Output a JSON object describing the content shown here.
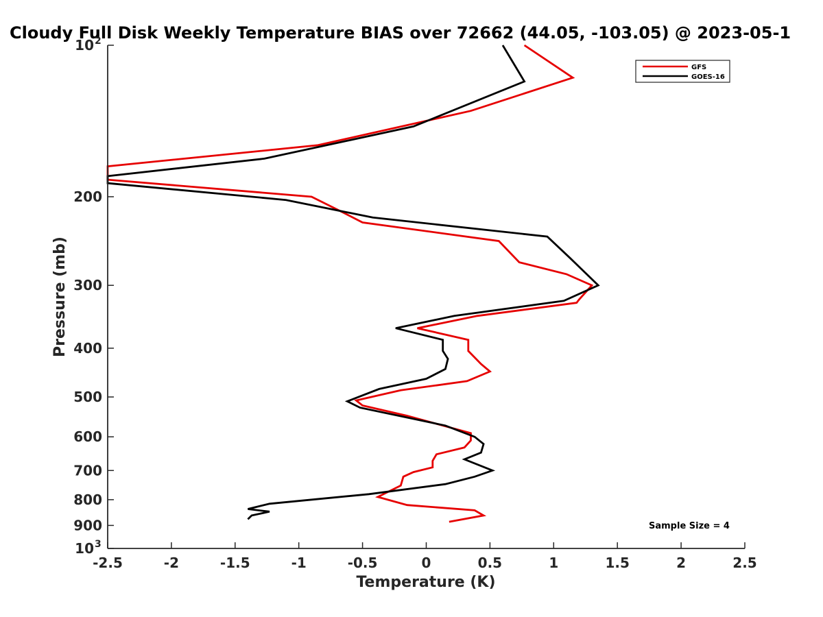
{
  "chart_data": {
    "type": "line",
    "title": "Cloudy Full Disk Weekly Temperature BIAS over 72662 (44.05, -103.05) @ 2023-05-1",
    "xlabel": "Temperature (K)",
    "ylabel": "Pressure (mb)",
    "xlim": [
      -2.5,
      2.5
    ],
    "ylim": [
      100,
      1000
    ],
    "y_scale": "log",
    "y_reversed": true,
    "grid": false,
    "legend_position": "top-right",
    "x_ticks": [
      "-2.5",
      "-2",
      "-1.5",
      "-1",
      "-0.5",
      "0",
      "0.5",
      "1",
      "1.5",
      "2",
      "2.5"
    ],
    "y_ticks": [
      {
        "value": 100,
        "base": "10",
        "exp": "2"
      },
      {
        "value": 200,
        "label": "200"
      },
      {
        "value": 300,
        "label": "300"
      },
      {
        "value": 400,
        "label": "400"
      },
      {
        "value": 500,
        "label": "500"
      },
      {
        "value": 600,
        "label": "600"
      },
      {
        "value": 700,
        "label": "700"
      },
      {
        "value": 800,
        "label": "800"
      },
      {
        "value": 900,
        "label": "900"
      },
      {
        "value": 1000,
        "base": "10",
        "exp": "3"
      }
    ],
    "annotation": "Sample Size = 4",
    "series": [
      {
        "name": "GFS",
        "color": "#e60000",
        "points": [
          [
            0.77,
            100
          ],
          [
            1.15,
            116
          ],
          [
            0.35,
            135
          ],
          [
            -0.85,
            158
          ],
          [
            -2.5,
            174
          ],
          [
            -2.5,
            185
          ],
          [
            -0.9,
            200
          ],
          [
            -0.7,
            212
          ],
          [
            -0.5,
            225
          ],
          [
            0.57,
            245
          ],
          [
            0.73,
            270
          ],
          [
            1.1,
            285
          ],
          [
            1.3,
            300
          ],
          [
            1.2,
            320
          ],
          [
            1.18,
            325
          ],
          [
            0.4,
            345
          ],
          [
            -0.07,
            365
          ],
          [
            0.33,
            385
          ],
          [
            0.33,
            405
          ],
          [
            0.43,
            430
          ],
          [
            0.5,
            445
          ],
          [
            0.32,
            465
          ],
          [
            -0.2,
            485
          ],
          [
            -0.55,
            508
          ],
          [
            -0.5,
            520
          ],
          [
            -0.15,
            545
          ],
          [
            0.35,
            590
          ],
          [
            0.35,
            610
          ],
          [
            0.3,
            630
          ],
          [
            0.08,
            650
          ],
          [
            0.05,
            670
          ],
          [
            0.05,
            690
          ],
          [
            -0.1,
            705
          ],
          [
            -0.18,
            720
          ],
          [
            -0.2,
            750
          ],
          [
            -0.38,
            790
          ],
          [
            -0.15,
            820
          ],
          [
            0.38,
            840
          ],
          [
            0.45,
            860
          ],
          [
            0.18,
            885
          ]
        ]
      },
      {
        "name": "GOES-16",
        "color": "#000000",
        "points": [
          [
            0.6,
            100
          ],
          [
            0.77,
            118
          ],
          [
            -0.1,
            145
          ],
          [
            -1.27,
            168
          ],
          [
            -2.5,
            182
          ],
          [
            -2.5,
            188
          ],
          [
            -1.1,
            203
          ],
          [
            -0.42,
            220
          ],
          [
            0.95,
            240
          ],
          [
            1.13,
            265
          ],
          [
            1.35,
            300
          ],
          [
            1.08,
            322
          ],
          [
            0.22,
            345
          ],
          [
            -0.24,
            365
          ],
          [
            0.13,
            385
          ],
          [
            0.13,
            405
          ],
          [
            0.17,
            420
          ],
          [
            0.15,
            440
          ],
          [
            0.0,
            460
          ],
          [
            -0.37,
            482
          ],
          [
            -0.62,
            510
          ],
          [
            -0.52,
            525
          ],
          [
            0.15,
            570
          ],
          [
            0.38,
            600
          ],
          [
            0.45,
            620
          ],
          [
            0.43,
            645
          ],
          [
            0.3,
            665
          ],
          [
            0.52,
            700
          ],
          [
            0.38,
            720
          ],
          [
            0.15,
            745
          ],
          [
            -0.45,
            780
          ],
          [
            -1.23,
            815
          ],
          [
            -1.4,
            835
          ],
          [
            -1.23,
            845
          ],
          [
            -1.37,
            860
          ],
          [
            -1.4,
            875
          ]
        ]
      }
    ]
  }
}
